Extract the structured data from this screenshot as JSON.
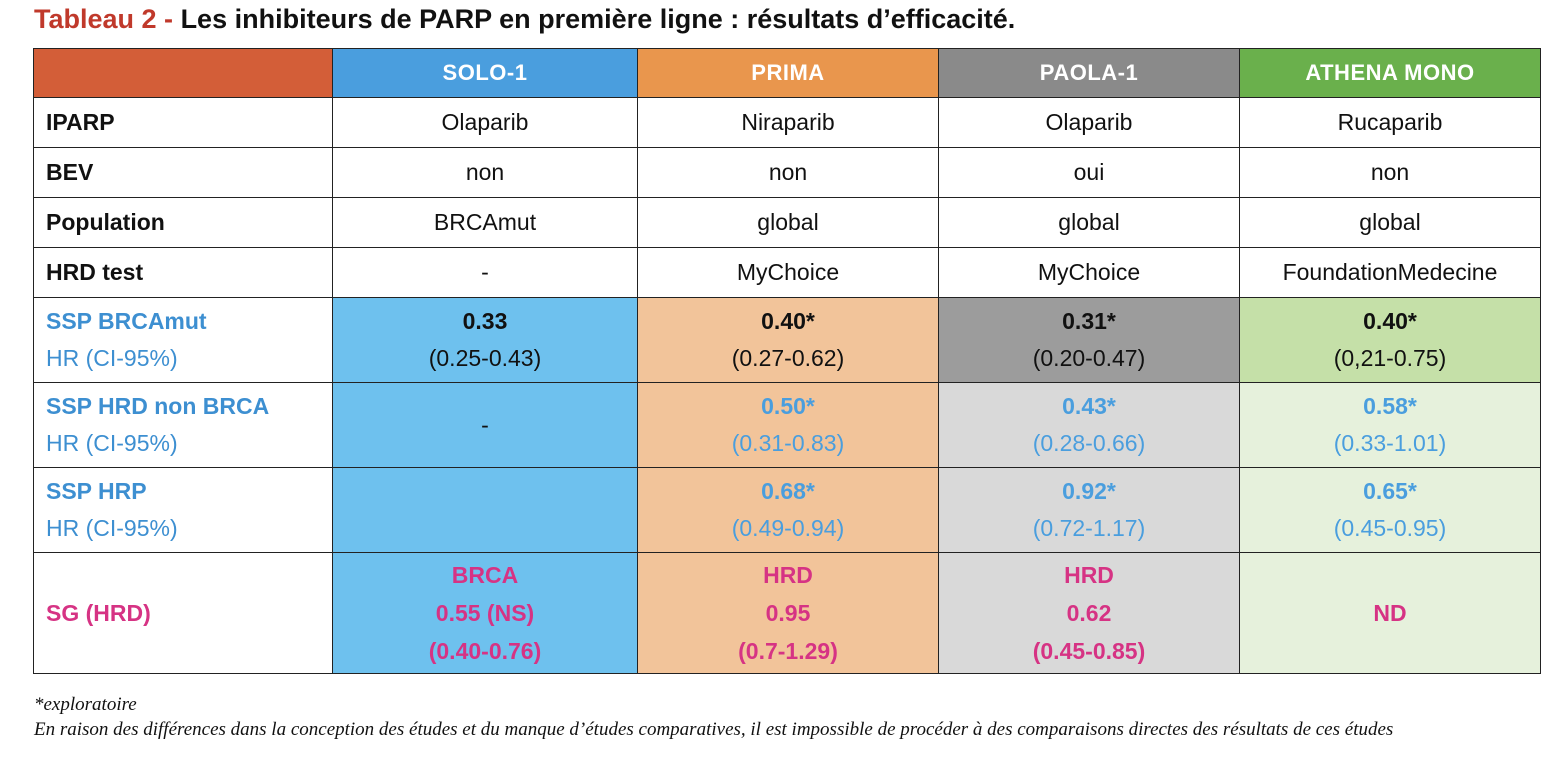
{
  "title": {
    "lead": "Tableau 2 -",
    "rest": "Les inhibiteurs de PARP en première ligne : résultats d’efficacité."
  },
  "columns": [
    "SOLO-1",
    "PRIMA",
    "PAOLA-1",
    "ATHENA MONO"
  ],
  "colors": {
    "title_lead": "#c0392b",
    "header_label": "#d35e38",
    "solo1": "#4a9ede",
    "prima": "#e9964d",
    "paola1": "#8a8a8a",
    "athena": "#6ab04c",
    "blue_text": "#4a9ede",
    "pink_text": "#d63384"
  },
  "rows": {
    "iparp": {
      "label": "IPARP",
      "values": [
        "Olaparib",
        "Niraparib",
        "Olaparib",
        "Rucaparib"
      ]
    },
    "bev": {
      "label": "BEV",
      "values": [
        "non",
        "non",
        "oui",
        "non"
      ]
    },
    "population": {
      "label": "Population",
      "values": [
        "BRCAmut",
        "global",
        "global",
        "global"
      ]
    },
    "hrd_test": {
      "label": "HRD test",
      "values": [
        "-",
        "MyChoice",
        "MyChoice",
        "FoundationMedecine"
      ]
    },
    "ssp_brcamut": {
      "label": "SSP BRCAmut",
      "sublabel": "HR (CI-95%)",
      "values": [
        {
          "hr": "0.33",
          "ci": "(0.25-0.43)"
        },
        {
          "hr": "0.40*",
          "ci": "(0.27-0.62)"
        },
        {
          "hr": "0.31*",
          "ci": "(0.20-0.47)"
        },
        {
          "hr": "0.40*",
          "ci": "(0,21-0.75)"
        }
      ]
    },
    "ssp_hrd_non_brca": {
      "label": "SSP HRD non BRCA",
      "sublabel": "HR (CI-95%)",
      "solo1": "-",
      "values": [
        {
          "hr": "0.50*",
          "ci": "(0.31-0.83)"
        },
        {
          "hr": "0.43*",
          "ci": "(0.28-0.66)"
        },
        {
          "hr": "0.58*",
          "ci": "(0.33-1.01)"
        }
      ]
    },
    "ssp_hrp": {
      "label": "SSP HRP",
      "sublabel": "HR (CI-95%)",
      "solo1": "",
      "values": [
        {
          "hr": "0.68*",
          "ci": "(0.49-0.94)"
        },
        {
          "hr": "0.92*",
          "ci": "(0.72-1.17)"
        },
        {
          "hr": "0.65*",
          "ci": "(0.45-0.95)"
        }
      ]
    },
    "sg": {
      "label": "SG (HRD)",
      "values": [
        {
          "l1": "BRCA",
          "l2": "0.55 (NS)",
          "l3": "(0.40-0.76)"
        },
        {
          "l1": "HRD",
          "l2": "0.95",
          "l3": "(0.7-1.29)"
        },
        {
          "l1": "HRD",
          "l2": "0.62",
          "l3": "(0.45-0.85)"
        },
        {
          "l1": "ND"
        }
      ]
    }
  },
  "footnotes": {
    "asterisk": "*exploratoire",
    "disclaimer": "En raison des différences dans la conception des études et du manque d’études comparatives, il est impossible de procéder à des comparaisons directes des résultats de ces études"
  }
}
